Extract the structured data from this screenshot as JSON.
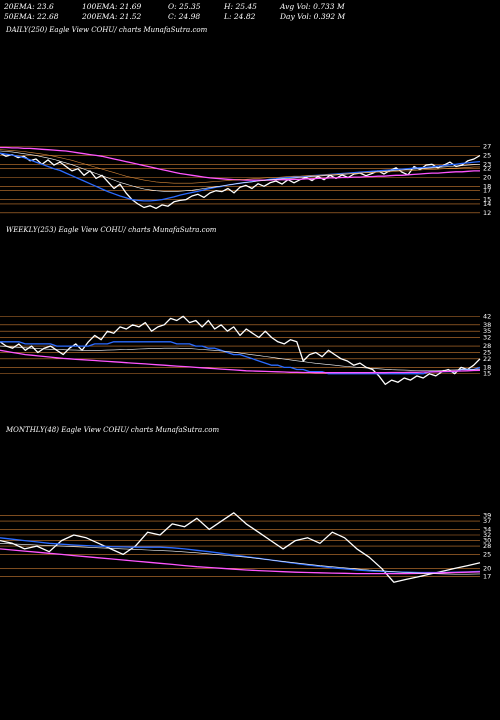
{
  "header": {
    "row1": [
      "20EMA: 23.6",
      "100EMA: 21.69",
      "O: 25.35",
      "H: 25.45",
      "Avg Vol: 0.733 M"
    ],
    "row2": [
      "50EMA: 22.68",
      "200EMA: 21.52",
      "C: 24.98",
      "L: 24.82",
      "Day Vol: 0.392 M"
    ]
  },
  "chart_data": [
    {
      "type": "line",
      "panel": "daily",
      "title": "DAILY(250) Eagle View COHU/ charts MunafaSutra.com",
      "y_ticks": [
        27,
        25,
        23,
        22,
        20,
        18,
        17,
        15,
        14,
        12
      ],
      "ylim": [
        11.5,
        28.5
      ],
      "series": [
        {
          "color": "#ffffff",
          "values": [
            25.5,
            24.8,
            25.2,
            24.5,
            24.8,
            23.8,
            24.2,
            23.0,
            24.0,
            22.8,
            23.5,
            22.5,
            21.5,
            22.0,
            20.5,
            21.5,
            19.8,
            20.5,
            19.0,
            17.5,
            18.5,
            16.5,
            15.0,
            14.0,
            13.2,
            13.6,
            13.0,
            13.8,
            13.5,
            14.5,
            14.8,
            15.0,
            15.8,
            16.2,
            15.5,
            16.5,
            17.0,
            16.8,
            17.5,
            16.5,
            17.8,
            18.2,
            17.5,
            18.6,
            18.0,
            18.8,
            19.2,
            18.5,
            19.5,
            18.8,
            19.5,
            20.0,
            19.3,
            20.2,
            19.5,
            20.5,
            19.8,
            20.6,
            20.0,
            20.8,
            21.0,
            20.4,
            20.9,
            21.5,
            20.8,
            21.6,
            22.2,
            21.2,
            20.6,
            22.5,
            21.8,
            22.8,
            23.0,
            22.2,
            22.8,
            23.5,
            22.5,
            22.8,
            23.8,
            24.2,
            24.98
          ]
        },
        {
          "color": "#2b6bff",
          "values": [
            25.5,
            25.3,
            25.1,
            24.8,
            24.5,
            24.0,
            23.5,
            23.0,
            22.5,
            22.0,
            21.6,
            21.0,
            20.4,
            19.8,
            19.2,
            18.6,
            18.0,
            17.4,
            16.8,
            16.3,
            15.8,
            15.4,
            15.0,
            14.8,
            14.7,
            14.7,
            14.8,
            15.0,
            15.3,
            15.6,
            16.0,
            16.3,
            16.6,
            16.9,
            17.2,
            17.5,
            17.8,
            18.0,
            18.3,
            18.5,
            18.7,
            18.9,
            19.1,
            19.3,
            19.4,
            19.6,
            19.7,
            19.9,
            20.0,
            20.1,
            20.2,
            20.3,
            20.4,
            20.5,
            20.6,
            20.7,
            20.8,
            20.9,
            21.0,
            21.1,
            21.2,
            21.3,
            21.4,
            21.5,
            21.6,
            21.7,
            21.8,
            21.9,
            22.0,
            22.1,
            22.2,
            22.3,
            22.4,
            22.6,
            22.7,
            22.9,
            23.0,
            23.2,
            23.3,
            23.5,
            23.6
          ]
        },
        {
          "color": "#ff55ff",
          "values": [
            26.8,
            26.8,
            26.7,
            26.7,
            26.6,
            26.6,
            26.5,
            26.4,
            26.3,
            26.2,
            26.1,
            26.0,
            25.8,
            25.6,
            25.4,
            25.2,
            25.0,
            24.8,
            24.5,
            24.2,
            23.9,
            23.6,
            23.3,
            23.0,
            22.7,
            22.4,
            22.1,
            21.8,
            21.5,
            21.2,
            20.9,
            20.7,
            20.5,
            20.3,
            20.1,
            19.9,
            19.8,
            19.7,
            19.6,
            19.5,
            19.5,
            19.4,
            19.4,
            19.4,
            19.4,
            19.4,
            19.5,
            19.5,
            19.5,
            19.6,
            19.6,
            19.7,
            19.7,
            19.8,
            19.8,
            19.9,
            19.9,
            20.0,
            20.0,
            20.1,
            20.1,
            20.2,
            20.2,
            20.3,
            20.3,
            20.4,
            20.5,
            20.5,
            20.6,
            20.7,
            20.8,
            20.9,
            21.0,
            21.0,
            21.1,
            21.2,
            21.3,
            21.3,
            21.4,
            21.5,
            21.5
          ]
        },
        {
          "color": "#ffffff",
          "width": 0.6,
          "values": [
            26.0,
            25.9,
            25.8,
            25.6,
            25.4,
            25.2,
            25.0,
            24.7,
            24.4,
            24.1,
            23.7,
            23.3,
            22.9,
            22.4,
            21.9,
            21.4,
            20.9,
            20.4,
            19.9,
            19.4,
            18.9,
            18.5,
            18.1,
            17.7,
            17.4,
            17.2,
            17.0,
            16.9,
            16.8,
            16.8,
            16.9,
            17.0,
            17.1,
            17.3,
            17.5,
            17.7,
            17.9,
            18.1,
            18.3,
            18.5,
            18.7,
            18.9,
            19.0,
            19.2,
            19.3,
            19.5,
            19.6,
            19.7,
            19.8,
            19.9,
            20.0,
            20.1,
            20.2,
            20.3,
            20.4,
            20.5,
            20.6,
            20.7,
            20.8,
            20.9,
            21.0,
            21.1,
            21.2,
            21.3,
            21.4,
            21.5,
            21.6,
            21.7,
            21.8,
            21.9,
            22.0,
            22.1,
            22.2,
            22.3,
            22.4,
            22.5,
            22.6,
            22.7,
            22.8,
            22.9,
            23.0
          ]
        },
        {
          "color": "#d98a3a",
          "width": 0.6,
          "values": [
            26.3,
            26.2,
            26.1,
            26.0,
            25.9,
            25.7,
            25.5,
            25.3,
            25.1,
            24.8,
            24.5,
            24.2,
            23.9,
            23.5,
            23.1,
            22.7,
            22.3,
            21.9,
            21.5,
            21.1,
            20.7,
            20.3,
            20.0,
            19.7,
            19.4,
            19.2,
            19.0,
            18.9,
            18.8,
            18.7,
            18.7,
            18.7,
            18.7,
            18.8,
            18.9,
            19.0,
            19.1,
            19.2,
            19.3,
            19.4,
            19.5,
            19.6,
            19.7,
            19.8,
            19.9,
            20.0,
            20.0,
            20.1,
            20.2,
            20.3,
            20.3,
            20.4,
            20.5,
            20.5,
            20.6,
            20.7,
            20.7,
            20.8,
            20.9,
            20.9,
            21.0,
            21.1,
            21.1,
            21.2,
            21.3,
            21.3,
            21.4,
            21.5,
            21.5,
            21.6,
            21.7,
            21.8,
            21.8,
            21.9,
            22.0,
            22.1,
            22.1,
            22.2,
            22.3,
            22.4,
            22.4
          ]
        }
      ]
    },
    {
      "type": "line",
      "panel": "weekly",
      "title": "WEEKLY(253) Eagle View COHU/ charts MunafaSutra.com",
      "y_ticks": [
        42,
        38,
        35,
        32,
        28,
        25,
        22,
        18,
        15
      ],
      "ylim": [
        13,
        44
      ],
      "series": [
        {
          "color": "#ffffff",
          "values": [
            30,
            28,
            27,
            29,
            26,
            28,
            25,
            27,
            28,
            26,
            24,
            27,
            29,
            26,
            30,
            33,
            31,
            35,
            34,
            37,
            36,
            38,
            37,
            39,
            35,
            37,
            38,
            41,
            40,
            42,
            39,
            40,
            37,
            40,
            36,
            38,
            35,
            37,
            33,
            36,
            34,
            32,
            35,
            32,
            30,
            29,
            31,
            30,
            21,
            24,
            25,
            23,
            26,
            24,
            22,
            21,
            19,
            20,
            18,
            17,
            14,
            10,
            12,
            11,
            13,
            12,
            14,
            13,
            15,
            14,
            16,
            17,
            15,
            18,
            17,
            19,
            22
          ]
        },
        {
          "color": "#2b6bff",
          "values": [
            30,
            30,
            30,
            30,
            29,
            29,
            29,
            29,
            29,
            28,
            28,
            28,
            28,
            28,
            28,
            29,
            29,
            29,
            30,
            30,
            30,
            30,
            30,
            30,
            30,
            30,
            30,
            30,
            29,
            29,
            29,
            28,
            28,
            27,
            27,
            26,
            25,
            24,
            24,
            23,
            22,
            21,
            20,
            19,
            19,
            18,
            18,
            17,
            17,
            16,
            16,
            16,
            15,
            15,
            15,
            15,
            15,
            15,
            15,
            15,
            15,
            15,
            15,
            15,
            15,
            15,
            15,
            15,
            16,
            16,
            16,
            16,
            16,
            17,
            17,
            17,
            18
          ]
        },
        {
          "color": "#ff55ff",
          "values": [
            26,
            25.5,
            25,
            24.5,
            24,
            23.7,
            23.4,
            23.1,
            22.8,
            22.5,
            22.2,
            22.0,
            21.8,
            21.6,
            21.4,
            21.2,
            21.0,
            20.8,
            20.6,
            20.4,
            20.2,
            20.0,
            19.8,
            19.6,
            19.4,
            19.2,
            19.0,
            18.8,
            18.6,
            18.4,
            18.2,
            18.0,
            17.8,
            17.6,
            17.4,
            17.2,
            17.0,
            16.8,
            16.6,
            16.4,
            16.3,
            16.2,
            16.1,
            16.0,
            15.9,
            15.8,
            15.7,
            15.7,
            15.6,
            15.6,
            15.5,
            15.5,
            15.5,
            15.5,
            15.5,
            15.5,
            15.5,
            15.5,
            15.5,
            15.5,
            15.5,
            15.5,
            15.6,
            15.6,
            15.6,
            15.7,
            15.7,
            15.8,
            15.8,
            15.9,
            16.0,
            16.1,
            16.2,
            16.3,
            16.4,
            16.5,
            16.6
          ]
        },
        {
          "color": "#ffffff",
          "width": 0.6,
          "values": [
            28,
            27.8,
            27.6,
            27.4,
            27.2,
            27.0,
            26.8,
            26.6,
            26.5,
            26.4,
            26.3,
            26.2,
            26.1,
            26.0,
            26.0,
            26.0,
            26.0,
            26.1,
            26.2,
            26.3,
            26.4,
            26.5,
            26.6,
            26.7,
            26.8,
            26.9,
            27.0,
            27.0,
            27.0,
            26.9,
            26.8,
            26.6,
            26.4,
            26.2,
            26.0,
            25.7,
            25.4,
            25.1,
            24.7,
            24.3,
            23.9,
            23.5,
            23.1,
            22.7,
            22.3,
            21.9,
            21.5,
            21.1,
            20.7,
            20.3,
            19.9,
            19.6,
            19.3,
            19.0,
            18.7,
            18.4,
            18.1,
            17.9,
            17.7,
            17.5,
            17.3,
            17.1,
            16.9,
            16.8,
            16.7,
            16.6,
            16.5,
            16.5,
            16.5,
            16.5,
            16.6,
            16.7,
            16.8,
            16.9,
            17.0,
            17.1,
            17.2
          ]
        }
      ]
    },
    {
      "type": "line",
      "panel": "monthly",
      "title": "MONTHLY(48) Eagle View COHU/ charts MunafaSutra.com",
      "y_ticks": [
        39,
        37,
        34,
        32,
        30,
        28,
        25,
        20,
        17
      ],
      "ylim": [
        14,
        41
      ],
      "series": [
        {
          "color": "#ffffff",
          "values": [
            30,
            29,
            27,
            28,
            26,
            30,
            32,
            31,
            29,
            27,
            25,
            28,
            33,
            32,
            36,
            35,
            38,
            34,
            37,
            40,
            36,
            33,
            30,
            27,
            30,
            31,
            29,
            33,
            31,
            27,
            24,
            20,
            15,
            16,
            17,
            18,
            19,
            20,
            21,
            22
          ]
        },
        {
          "color": "#2b6bff",
          "values": [
            31,
            30.5,
            30,
            29.5,
            29,
            28.7,
            28.4,
            28.2,
            28.0,
            27.8,
            27.7,
            27.6,
            27.6,
            27.6,
            27.4,
            27.0,
            26.5,
            26.0,
            25.4,
            24.8,
            24.2,
            23.6,
            23.0,
            22.4,
            21.8,
            21.2,
            20.7,
            20.2,
            19.8,
            19.4,
            19.1,
            18.9,
            18.7,
            18.6,
            18.5,
            18.5,
            18.5,
            18.6,
            18.7,
            18.9
          ]
        },
        {
          "color": "#ff55ff",
          "values": [
            27,
            26.6,
            26.2,
            25.8,
            25.4,
            25.0,
            24.6,
            24.2,
            23.8,
            23.4,
            23.0,
            22.6,
            22.2,
            21.8,
            21.4,
            21.0,
            20.6,
            20.3,
            20.0,
            19.7,
            19.4,
            19.2,
            19.0,
            18.8,
            18.6,
            18.5,
            18.4,
            18.3,
            18.2,
            18.1,
            18.1,
            18.1,
            18.1,
            18.1,
            18.2,
            18.3,
            18.4,
            18.5,
            18.6,
            18.7
          ]
        },
        {
          "color": "#ffffff",
          "width": 0.6,
          "values": [
            29,
            28.8,
            28.6,
            28.4,
            28.2,
            28.0,
            27.8,
            27.6,
            27.4,
            27.2,
            27.0,
            26.8,
            26.6,
            26.4,
            26.2,
            25.9,
            25.6,
            25.2,
            24.8,
            24.4,
            24.0,
            23.5,
            23.0,
            22.5,
            22.0,
            21.5,
            21.0,
            20.6,
            20.2,
            19.8,
            19.4,
            19.1,
            18.8,
            18.5,
            18.3,
            18.1,
            18.0,
            17.9,
            17.9,
            18.0
          ]
        }
      ]
    }
  ]
}
